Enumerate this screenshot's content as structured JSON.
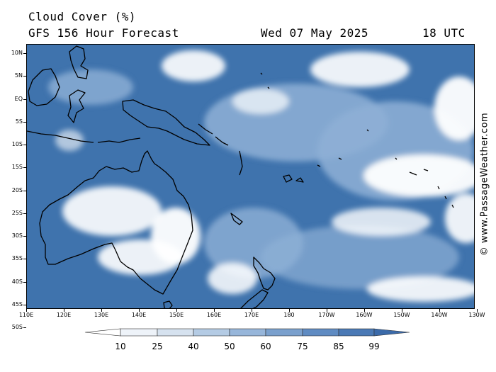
{
  "header": {
    "title": "Cloud Cover (%)",
    "subtitle": "GFS 156 Hour Forecast",
    "date": "Wed 07 May 2025",
    "time": "18 UTC"
  },
  "map": {
    "latitude_labels": [
      "10N",
      "5N",
      "EQ",
      "5S",
      "10S",
      "15S",
      "20S",
      "25S",
      "30S",
      "35S",
      "40S",
      "45S",
      "50S"
    ],
    "longitude_labels": [
      "110E",
      "120E",
      "130E",
      "140E",
      "150E",
      "160E",
      "170E",
      "180",
      "170W",
      "160W",
      "150W",
      "140W",
      "130W"
    ],
    "colors": {
      "clear": "#ffffff",
      "low": "#dbe6f2",
      "mid": "#8fb0d6",
      "high": "#3f73ad",
      "coast": "#000000"
    }
  },
  "legend": {
    "labels": [
      "10",
      "25",
      "40",
      "50",
      "60",
      "75",
      "85",
      "99"
    ],
    "colors": [
      "#ffffff",
      "#eef3f9",
      "#d6e2ef",
      "#b4cbe4",
      "#97b6da",
      "#7aa0cd",
      "#5f8bc2",
      "#4a79b5",
      "#3b6aa9"
    ]
  },
  "credit": "© www.PassageWeather.com"
}
